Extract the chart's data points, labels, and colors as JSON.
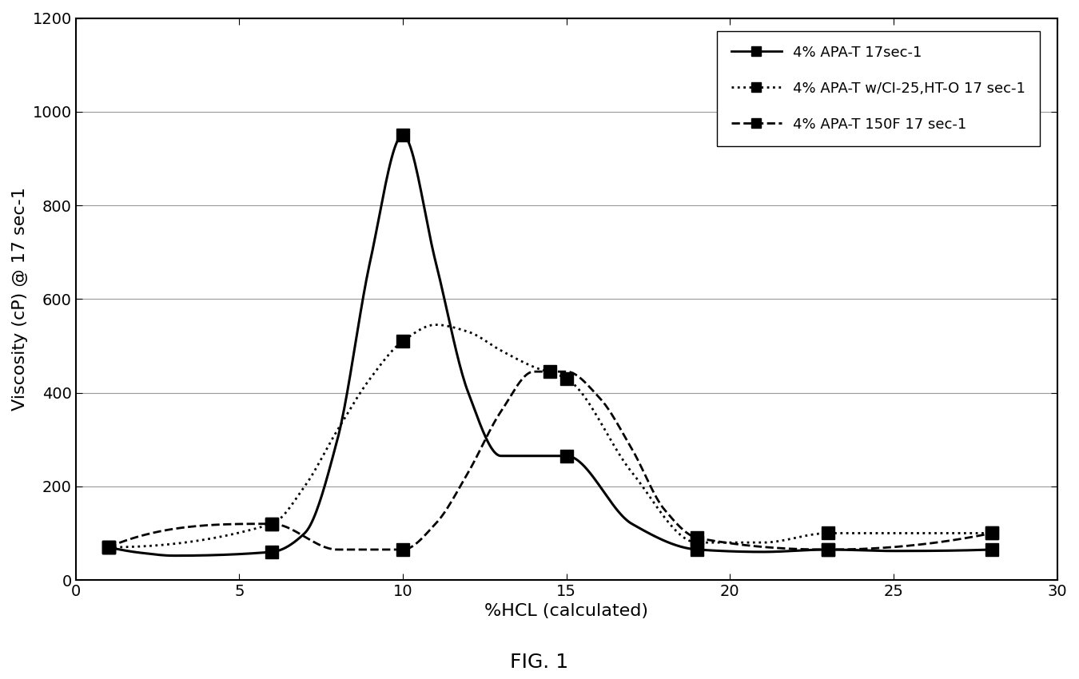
{
  "title": "FIG. 1",
  "xlabel": "%HCL (calculated)",
  "ylabel": "Viscosity (cP) @ 17 sec-1",
  "xlim": [
    0,
    30
  ],
  "ylim": [
    0,
    1200
  ],
  "xticks": [
    0,
    5,
    10,
    15,
    20,
    25,
    30
  ],
  "yticks": [
    0,
    200,
    400,
    600,
    800,
    1000,
    1200
  ],
  "series": [
    {
      "label": "4% APA-T 17sec-1",
      "linestyle": "solid",
      "color": "black",
      "marker": "s",
      "x": [
        1,
        2,
        3,
        6,
        7,
        8,
        9,
        10,
        11,
        12,
        13,
        15,
        17,
        19,
        21,
        23,
        25,
        28
      ],
      "y": [
        70,
        58,
        52,
        60,
        100,
        300,
        680,
        950,
        680,
        400,
        265,
        265,
        120,
        65,
        60,
        65,
        62,
        65
      ]
    },
    {
      "label": "4% APA-T w/CI-25,HT-O 17 sec-1",
      "linestyle": "dotted",
      "color": "black",
      "marker": "s",
      "x": [
        1,
        6,
        7,
        8,
        9,
        10,
        11,
        12,
        13,
        14,
        15,
        17,
        19,
        21,
        23,
        25,
        28
      ],
      "y": [
        70,
        120,
        200,
        320,
        430,
        510,
        545,
        530,
        490,
        455,
        430,
        230,
        80,
        80,
        100,
        100,
        100
      ]
    },
    {
      "label": "4% APA-T 150F 17 sec-1",
      "linestyle": "dashed",
      "color": "black",
      "marker": "s",
      "x": [
        1,
        6,
        8,
        10,
        11,
        12,
        13,
        14,
        15,
        16,
        17,
        18,
        19,
        23,
        28
      ],
      "y": [
        70,
        120,
        65,
        65,
        120,
        230,
        360,
        445,
        445,
        390,
        280,
        150,
        90,
        65,
        100
      ]
    }
  ],
  "marker_points": [
    {
      "series": 0,
      "x": [
        1,
        6,
        10,
        15,
        19,
        23,
        28
      ],
      "y": [
        70,
        60,
        950,
        265,
        65,
        65,
        65
      ]
    },
    {
      "series": 1,
      "x": [
        1,
        6,
        10,
        15,
        19,
        23,
        28
      ],
      "y": [
        70,
        120,
        510,
        430,
        80,
        100,
        100
      ]
    },
    {
      "series": 2,
      "x": [
        1,
        6,
        10,
        14.5,
        19,
        23,
        28
      ],
      "y": [
        70,
        120,
        65,
        445,
        90,
        65,
        100
      ]
    }
  ],
  "background_color": "#ffffff",
  "grid": true
}
